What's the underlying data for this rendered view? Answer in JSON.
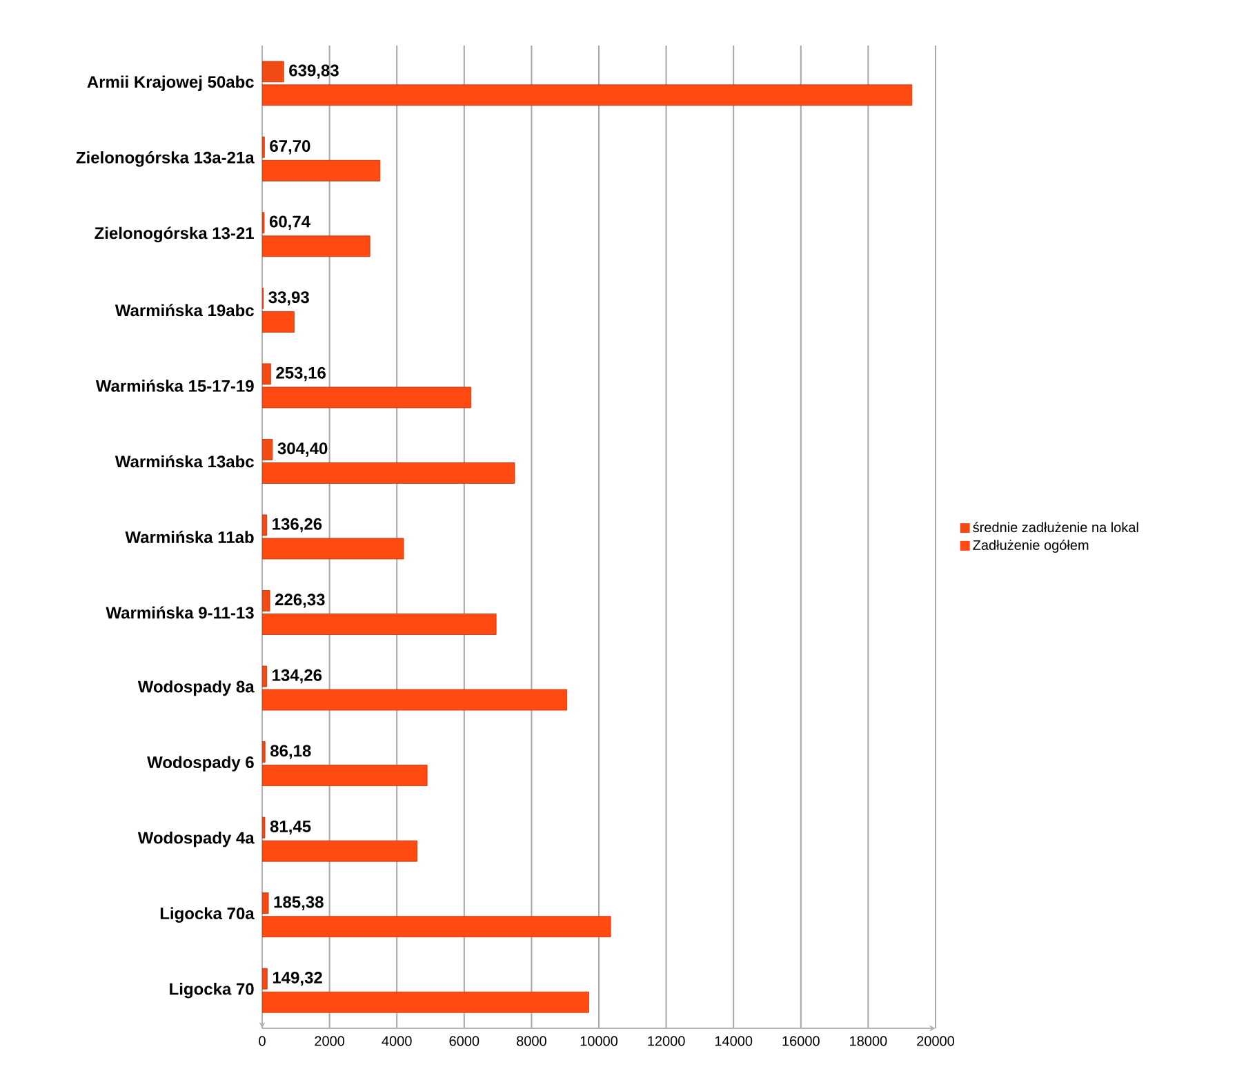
{
  "chart_data": {
    "type": "bar",
    "orientation": "horizontal",
    "categories": [
      "Armii Krajowej 50abc",
      "Zielonogórska 13a-21a",
      "Zielonogórska 13-21",
      "Warmińska 19abc",
      "Warmińska 15-17-19",
      "Warmińska 13abc",
      "Warmińska 11ab",
      "Warmińska 9-11-13",
      "Wodospady 8a",
      "Wodospady 6",
      "Wodospady 4a",
      "Ligocka 70a",
      "Ligocka 70"
    ],
    "series": [
      {
        "name": "średnie zadłużenie na lokal",
        "color": "#f24a14",
        "values": [
          639.83,
          67.7,
          60.74,
          33.93,
          253.16,
          304.4,
          136.26,
          226.33,
          134.26,
          86.18,
          81.45,
          185.38,
          149.32
        ],
        "value_labels": [
          "639,83",
          "67,70",
          "60,74",
          "33,93",
          "253,16",
          "304,40",
          "136,26",
          "226,33",
          "134,26",
          "86,18",
          "81,45",
          "185,38",
          "149,32"
        ]
      },
      {
        "name": "Zadłużenie ogółem",
        "color": "#ff4a12",
        "values": [
          19300,
          3500,
          3200,
          950,
          6200,
          7500,
          4200,
          6950,
          9050,
          4900,
          4600,
          10350,
          9700
        ]
      }
    ],
    "xlim": [
      0,
      20000
    ],
    "xticks": [
      0,
      2000,
      4000,
      6000,
      8000,
      10000,
      12000,
      14000,
      16000,
      18000,
      20000
    ],
    "grid": "x",
    "legend": "right"
  }
}
